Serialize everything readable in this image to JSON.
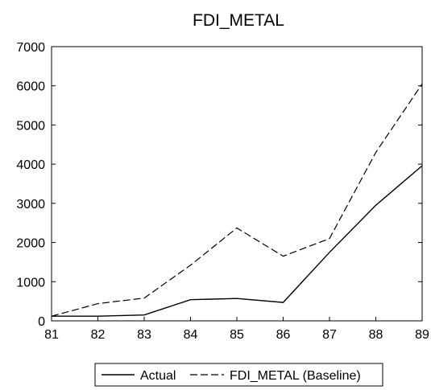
{
  "chart_data": {
    "type": "line",
    "title": "FDI_METAL",
    "xlabel": "",
    "ylabel": "",
    "x": [
      "81",
      "82",
      "83",
      "84",
      "85",
      "86",
      "87",
      "88",
      "89"
    ],
    "ylim": [
      0,
      7000
    ],
    "yticks": [
      0,
      1000,
      2000,
      3000,
      4000,
      5000,
      6000,
      7000
    ],
    "grid": false,
    "legend_position": "bottom",
    "series": [
      {
        "name": "Actual",
        "style": "solid",
        "color": "#000000",
        "values": [
          120,
          120,
          150,
          540,
          570,
          470,
          1750,
          2950,
          3960
        ]
      },
      {
        "name": "FDI_METAL (Baseline)",
        "style": "dashed",
        "color": "#000000",
        "values": [
          120,
          440,
          580,
          1420,
          2370,
          1650,
          2100,
          4300,
          6050
        ]
      }
    ]
  }
}
